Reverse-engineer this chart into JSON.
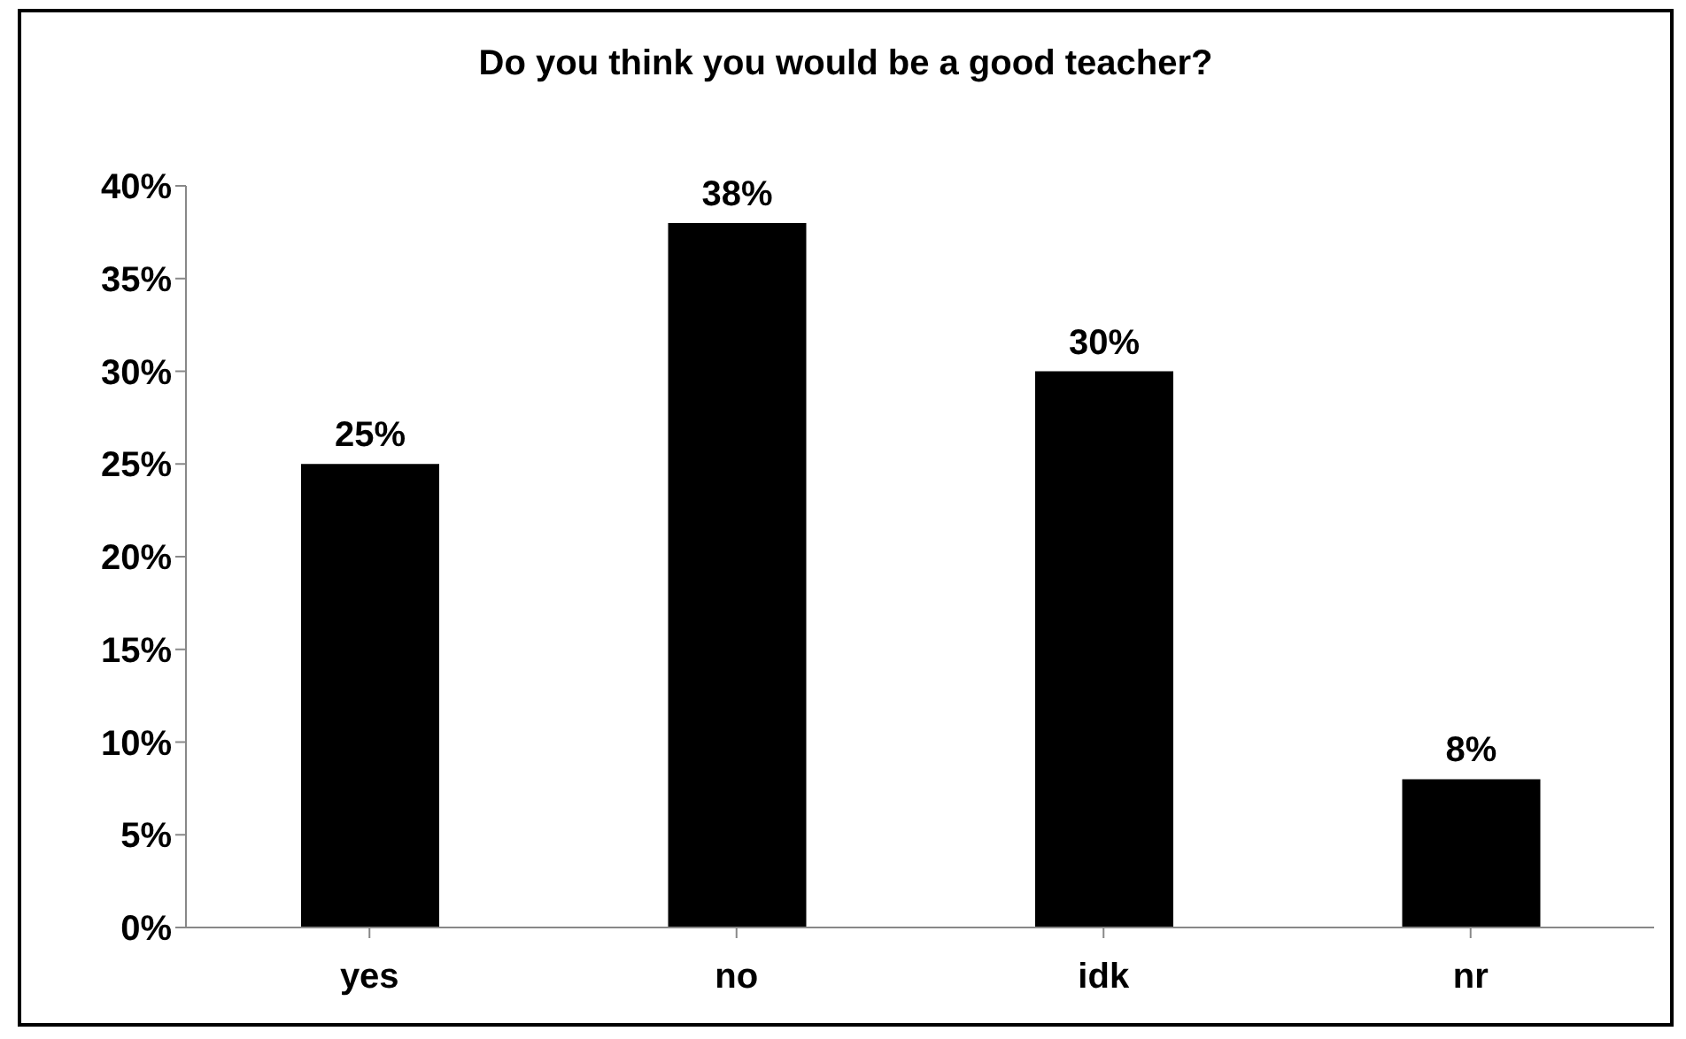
{
  "chart_data": {
    "type": "bar",
    "title": "Do you think you would be a good teacher?",
    "categories": [
      "yes",
      "no",
      "idk",
      "nr"
    ],
    "values": [
      25,
      38,
      30,
      8
    ],
    "value_labels": [
      "25%",
      "38%",
      "30%",
      "8%"
    ],
    "color": "#000000",
    "ylim": [
      0,
      40
    ],
    "yticks": [
      {
        "value": 0,
        "label": "0%"
      },
      {
        "value": 5,
        "label": "5%"
      },
      {
        "value": 10,
        "label": "10%"
      },
      {
        "value": 15,
        "label": "15%"
      },
      {
        "value": 20,
        "label": "20%"
      },
      {
        "value": 25,
        "label": "25%"
      },
      {
        "value": 30,
        "label": "30%"
      },
      {
        "value": 35,
        "label": "35%"
      },
      {
        "value": 40,
        "label": "40%"
      }
    ],
    "grid": false,
    "legend": false
  }
}
